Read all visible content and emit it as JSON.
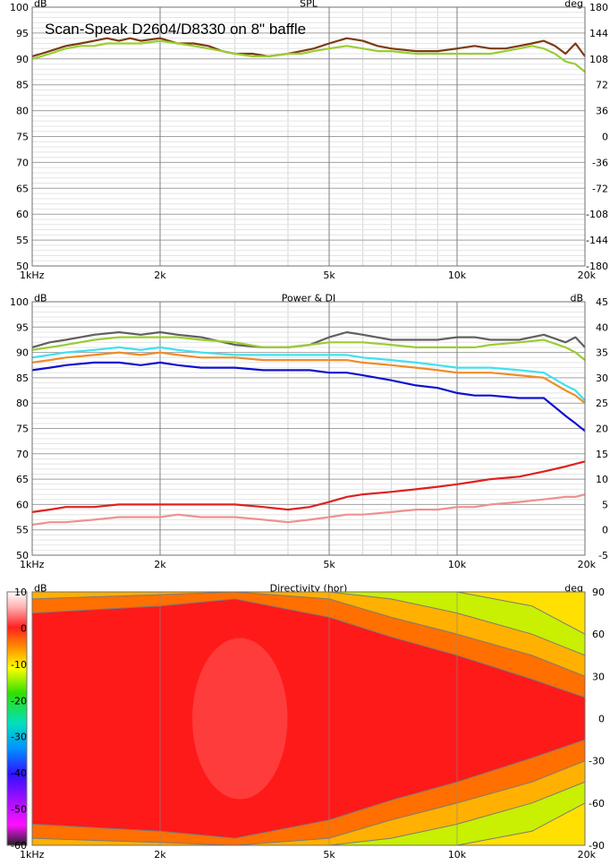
{
  "chart_data": [
    {
      "type": "line",
      "title": "SPL",
      "annotation": "Scan-Speak D2604/D8330 on 8\" baffle",
      "ylabel": "dB",
      "ylabel_right": "deg",
      "xscale": "log",
      "xlim": [
        1000,
        20000
      ],
      "ylim": [
        50,
        100
      ],
      "ylim_right": [
        -180,
        180
      ],
      "x_ticks": [
        {
          "v": 1000,
          "label": "1kHz"
        },
        {
          "v": 2000,
          "label": "2k"
        },
        {
          "v": 5000,
          "label": "5k"
        },
        {
          "v": 10000,
          "label": "10k"
        },
        {
          "v": 20000,
          "label": "20k"
        }
      ],
      "y_ticks": [
        "100",
        "95",
        "90",
        "85",
        "80",
        "75",
        "70",
        "65",
        "60",
        "55",
        "50"
      ],
      "y_ticks_right": [
        "180",
        "144",
        "108",
        "72",
        "36",
        "0",
        "-36",
        "-72",
        "-108",
        "-144",
        "-180"
      ],
      "grid": true,
      "series": [
        {
          "color": "#7a3b10",
          "x": [
            1000,
            1050,
            1100,
            1200,
            1300,
            1400,
            1500,
            1600,
            1700,
            1800,
            2000,
            2200,
            2400,
            2600,
            2800,
            3000,
            3300,
            3600,
            4000,
            4300,
            4600,
            5000,
            5500,
            6000,
            6500,
            7000,
            8000,
            9000,
            10000,
            11000,
            12000,
            13000,
            14000,
            15000,
            16000,
            17000,
            18000,
            19000,
            20000
          ],
          "y": [
            90.5,
            91,
            91.5,
            92.5,
            93,
            93.5,
            94,
            93.5,
            94,
            93.5,
            94,
            93,
            93,
            92.5,
            91.5,
            91,
            91,
            90.5,
            91,
            91.5,
            92,
            93,
            94,
            93.5,
            92.5,
            92,
            91.5,
            91.5,
            92,
            92.5,
            92,
            92,
            92.5,
            93,
            93.5,
            92.5,
            91,
            93,
            90.5
          ]
        },
        {
          "color": "#9acd32",
          "x": [
            1000,
            1050,
            1100,
            1200,
            1300,
            1400,
            1500,
            1600,
            1700,
            1800,
            2000,
            2200,
            2400,
            2600,
            2800,
            3000,
            3300,
            3600,
            4000,
            4300,
            4600,
            5000,
            5500,
            6000,
            6500,
            7000,
            8000,
            9000,
            10000,
            11000,
            12000,
            13000,
            14000,
            15000,
            16000,
            17000,
            18000,
            19000,
            20000
          ],
          "y": [
            90,
            90.5,
            91,
            92,
            92.5,
            92.5,
            93,
            93,
            93,
            93,
            93.5,
            93,
            92.5,
            92,
            91.5,
            91,
            90.5,
            90.5,
            91,
            91,
            91.5,
            92,
            92.5,
            92,
            91.5,
            91.5,
            91,
            91,
            91,
            91,
            91,
            91.5,
            92,
            92.5,
            92,
            91,
            89.5,
            89,
            87.5
          ]
        }
      ]
    },
    {
      "type": "line",
      "title": "Power & DI",
      "ylabel": "dB",
      "ylabel_right": "dB",
      "xscale": "log",
      "xlim": [
        1000,
        20000
      ],
      "ylim": [
        50,
        100
      ],
      "ylim_right": [
        -5,
        45
      ],
      "x_ticks": [
        {
          "v": 1000,
          "label": "1kHz"
        },
        {
          "v": 2000,
          "label": "2k"
        },
        {
          "v": 5000,
          "label": "5k"
        },
        {
          "v": 10000,
          "label": "10k"
        },
        {
          "v": 20000,
          "label": "20k"
        }
      ],
      "y_ticks": [
        "100",
        "95",
        "90",
        "85",
        "80",
        "75",
        "70",
        "65",
        "60",
        "55",
        "50"
      ],
      "y_ticks_right": [
        "45",
        "40",
        "35",
        "30",
        "25",
        "20",
        "15",
        "10",
        "5",
        "0",
        "-5"
      ],
      "grid": true,
      "series": [
        {
          "color": "#606060",
          "x": [
            1000,
            1100,
            1200,
            1400,
            1600,
            1800,
            2000,
            2200,
            2500,
            3000,
            3500,
            4000,
            4500,
            5000,
            5500,
            6000,
            7000,
            8000,
            9000,
            10000,
            11000,
            12000,
            14000,
            16000,
            18000,
            19000,
            20000
          ],
          "y": [
            91,
            92,
            92.5,
            93.5,
            94,
            93.5,
            94,
            93.5,
            93,
            91.5,
            91,
            91,
            91.5,
            93,
            94,
            93.5,
            92.5,
            92.5,
            92.5,
            93,
            93,
            92.5,
            92.5,
            93.5,
            92,
            93,
            91
          ]
        },
        {
          "color": "#9acd32",
          "x": [
            1000,
            1100,
            1200,
            1400,
            1600,
            1800,
            2000,
            2200,
            2500,
            3000,
            3500,
            4000,
            4500,
            5000,
            5500,
            6000,
            7000,
            8000,
            9000,
            10000,
            11000,
            12000,
            14000,
            16000,
            18000,
            19000,
            20000
          ],
          "y": [
            90.5,
            91,
            91.5,
            92.5,
            93,
            93,
            93,
            93,
            92.5,
            92,
            91,
            91,
            91.5,
            92,
            92,
            92,
            91.5,
            91,
            91,
            91,
            91,
            91.5,
            92,
            92.5,
            91,
            90,
            88.5
          ]
        },
        {
          "color": "#40e0f0",
          "x": [
            1000,
            1100,
            1200,
            1400,
            1600,
            1800,
            2000,
            2200,
            2500,
            3000,
            3500,
            4000,
            4500,
            5000,
            5500,
            6000,
            7000,
            8000,
            9000,
            10000,
            11000,
            12000,
            14000,
            16000,
            18000,
            19000,
            20000
          ],
          "y": [
            89,
            89.5,
            90,
            90.5,
            91,
            90.5,
            91,
            90.5,
            90,
            89.5,
            89.5,
            89.5,
            89.5,
            89.5,
            89.5,
            89,
            88.5,
            88,
            87.5,
            87,
            87,
            87,
            86.5,
            86,
            83.5,
            82.5,
            80.5
          ]
        },
        {
          "color": "#f08c28",
          "x": [
            1000,
            1100,
            1200,
            1400,
            1600,
            1800,
            2000,
            2200,
            2500,
            3000,
            3500,
            4000,
            4500,
            5000,
            5500,
            6000,
            7000,
            8000,
            9000,
            10000,
            11000,
            12000,
            14000,
            16000,
            18000,
            19000,
            20000
          ],
          "y": [
            88,
            88.5,
            89,
            89.5,
            90,
            89.5,
            90,
            89.5,
            89,
            89,
            88.5,
            88.5,
            88.5,
            88.5,
            88.5,
            88,
            87.5,
            87,
            86.5,
            86,
            86,
            86,
            85.5,
            85,
            82.5,
            81.5,
            80
          ]
        },
        {
          "color": "#1010d0",
          "x": [
            1000,
            1100,
            1200,
            1400,
            1600,
            1800,
            2000,
            2200,
            2500,
            3000,
            3500,
            4000,
            4500,
            5000,
            5500,
            6000,
            7000,
            8000,
            9000,
            10000,
            11000,
            12000,
            14000,
            16000,
            18000,
            19000,
            20000
          ],
          "y": [
            86.5,
            87,
            87.5,
            88,
            88,
            87.5,
            88,
            87.5,
            87,
            87,
            86.5,
            86.5,
            86.5,
            86,
            86,
            85.5,
            84.5,
            83.5,
            83,
            82,
            81.5,
            81.5,
            81,
            81,
            77.5,
            76,
            74.5
          ]
        },
        {
          "color": "#e02020",
          "x": [
            1000,
            1100,
            1200,
            1400,
            1600,
            1800,
            2000,
            2200,
            2500,
            3000,
            3500,
            4000,
            4500,
            5000,
            5500,
            6000,
            7000,
            8000,
            9000,
            10000,
            11000,
            12000,
            14000,
            16000,
            18000,
            19000,
            20000
          ],
          "y": [
            58.5,
            59,
            59.5,
            59.5,
            60,
            60,
            60,
            60,
            60,
            60,
            59.5,
            59,
            59.5,
            60.5,
            61.5,
            62,
            62.5,
            63,
            63.5,
            64,
            64.5,
            65,
            65.5,
            66.5,
            67.5,
            68,
            68.5
          ]
        },
        {
          "color": "#f09090",
          "x": [
            1000,
            1100,
            1200,
            1400,
            1600,
            1800,
            2000,
            2200,
            2500,
            3000,
            3500,
            4000,
            4500,
            5000,
            5500,
            6000,
            7000,
            8000,
            9000,
            10000,
            11000,
            12000,
            14000,
            16000,
            18000,
            19000,
            20000
          ],
          "y": [
            56,
            56.5,
            56.5,
            57,
            57.5,
            57.5,
            57.5,
            58,
            57.5,
            57.5,
            57,
            56.5,
            57,
            57.5,
            58,
            58,
            58.5,
            59,
            59,
            59.5,
            59.5,
            60,
            60.5,
            61,
            61.5,
            61.5,
            62
          ]
        }
      ]
    },
    {
      "type": "heatmap",
      "title": "Directivity (hor)",
      "ylabel": "dB",
      "ylabel_right": "deg",
      "xscale": "log",
      "xlim": [
        1000,
        20000
      ],
      "ylim": [
        -90,
        90
      ],
      "x_ticks": [
        {
          "v": 1000,
          "label": "1kHz"
        },
        {
          "v": 2000,
          "label": "2k"
        },
        {
          "v": 5000,
          "label": "5k"
        },
        {
          "v": 10000,
          "label": "10k"
        },
        {
          "v": 20000,
          "label": "20k"
        }
      ],
      "y_ticks_right": [
        "90",
        "60",
        "30",
        "0",
        "-30",
        "-60",
        "-90"
      ],
      "colorbar_ticks": [
        "10",
        "0",
        "-10",
        "-20",
        "-30",
        "-40",
        "-50",
        "-60"
      ],
      "colorbar_range": [
        -60,
        10
      ],
      "level_boundaries": [
        {
          "level": "-3",
          "x": [
            1000,
            2000,
            3000,
            5000,
            7000,
            10000,
            15000,
            20000
          ],
          "deg": [
            75,
            80,
            85,
            72,
            58,
            45,
            28,
            15
          ]
        },
        {
          "level": "-6",
          "x": [
            1000,
            2000,
            3000,
            5000,
            7000,
            10000,
            15000,
            20000
          ],
          "deg": [
            85,
            88,
            90,
            85,
            72,
            60,
            45,
            30
          ]
        },
        {
          "level": "-10",
          "x": [
            1000,
            2000,
            3000,
            5000,
            7000,
            10000,
            15000,
            20000
          ],
          "deg": [
            90,
            90,
            90,
            90,
            85,
            75,
            60,
            45
          ]
        },
        {
          "level": "-20",
          "x": [
            1000,
            2000,
            3000,
            5000,
            7000,
            10000,
            15000,
            20000
          ],
          "deg": [
            90,
            90,
            90,
            90,
            90,
            90,
            80,
            60
          ]
        }
      ],
      "hot_spot_x": [
        2500,
        3800
      ]
    }
  ]
}
